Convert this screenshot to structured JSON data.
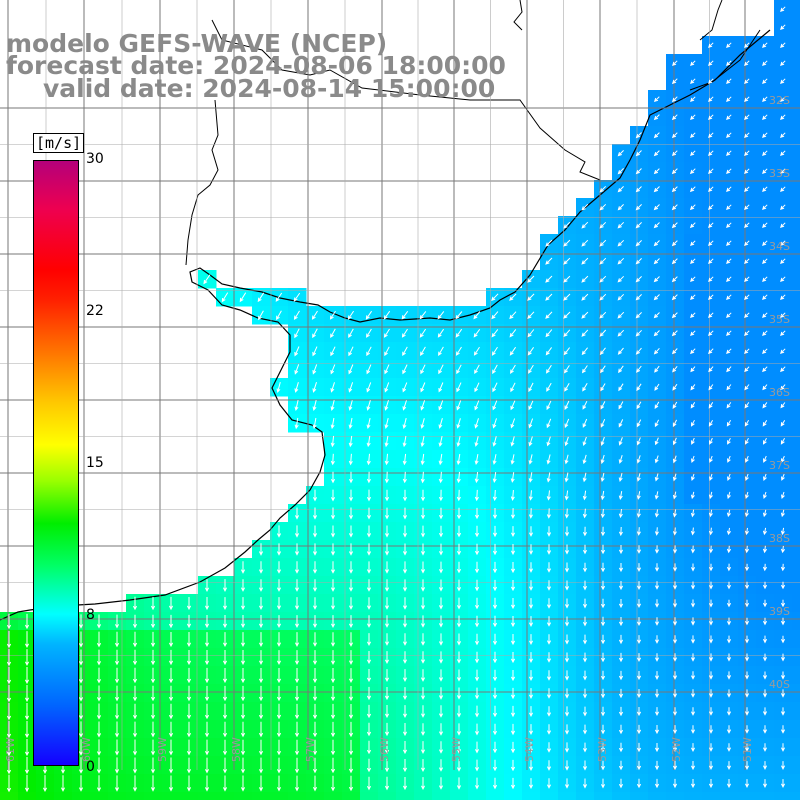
{
  "title": {
    "line1": "modelo GEFS-WAVE (NCEP)",
    "line2": "forecast date: 2024-08-06 18:00:00",
    "line3": "valid date: 2024-08-14 15:00:00"
  },
  "colorbar": {
    "unit": "[m/s]",
    "ticks": [
      "30",
      "22",
      "15",
      "8",
      "0"
    ],
    "min": 0,
    "max": 30
  },
  "axes": {
    "lon_labels": [
      "61W",
      "60W",
      "59W",
      "58W",
      "57W",
      "56W",
      "55W",
      "54W",
      "53W",
      "52W",
      "51W"
    ],
    "lat_labels": [
      "32S",
      "33S",
      "34S",
      "35S",
      "36S",
      "37S",
      "38S",
      "39S",
      "40S"
    ]
  },
  "colors": {
    "land": "#ffffff",
    "coastline": "#000000",
    "grid": "#808080",
    "arrows": "#ffffff",
    "labels": "#8a8a8a"
  },
  "field": {
    "variable": "wind speed",
    "direction_north": "wind from NE, blowing toward SW",
    "direction_south": "wind from N, blowing toward S",
    "speed_range_ms": [
      5,
      13
    ]
  }
}
